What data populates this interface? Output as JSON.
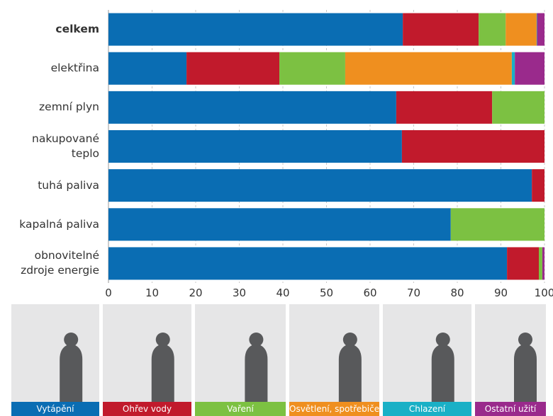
{
  "chart_data": {
    "type": "stacked-barh",
    "categories": [
      "celkem",
      "elektřina",
      "zemní plyn",
      "nakupované\nteplo",
      "tuhá paliva",
      "kapalná paliva",
      "obnovitelné\nzdroje energie"
    ],
    "series": [
      {
        "name": "Vytápění",
        "color": "#0a6db3",
        "values": [
          67.5,
          17.9,
          66.0,
          67.3,
          97.1,
          78.5,
          91.4
        ]
      },
      {
        "name": "Ohřev vody",
        "color": "#c11a2c",
        "values": [
          17.4,
          21.3,
          22.0,
          32.7,
          2.9,
          0,
          7.3
        ]
      },
      {
        "name": "Vaření",
        "color": "#7cc142",
        "values": [
          6.2,
          15.1,
          12.0,
          0,
          0,
          21.5,
          0.8
        ]
      },
      {
        "name": "Osvětlení, spotřebiče",
        "color": "#ef8f1f",
        "values": [
          7.1,
          38.2,
          0,
          0,
          0,
          0,
          0
        ]
      },
      {
        "name": "Chlazení",
        "color": "#1ab0c6",
        "values": [
          0.1,
          0.7,
          0,
          0,
          0,
          0,
          0
        ]
      },
      {
        "name": "Ostatní užití",
        "color": "#9a2a8c",
        "values": [
          1.7,
          6.8,
          0,
          0,
          0,
          0,
          0.5
        ]
      }
    ],
    "xlim": [
      0,
      100
    ],
    "xticks": [
      0,
      10,
      20,
      30,
      40,
      50,
      60,
      70,
      80,
      90,
      100
    ],
    "grid": true
  }
}
